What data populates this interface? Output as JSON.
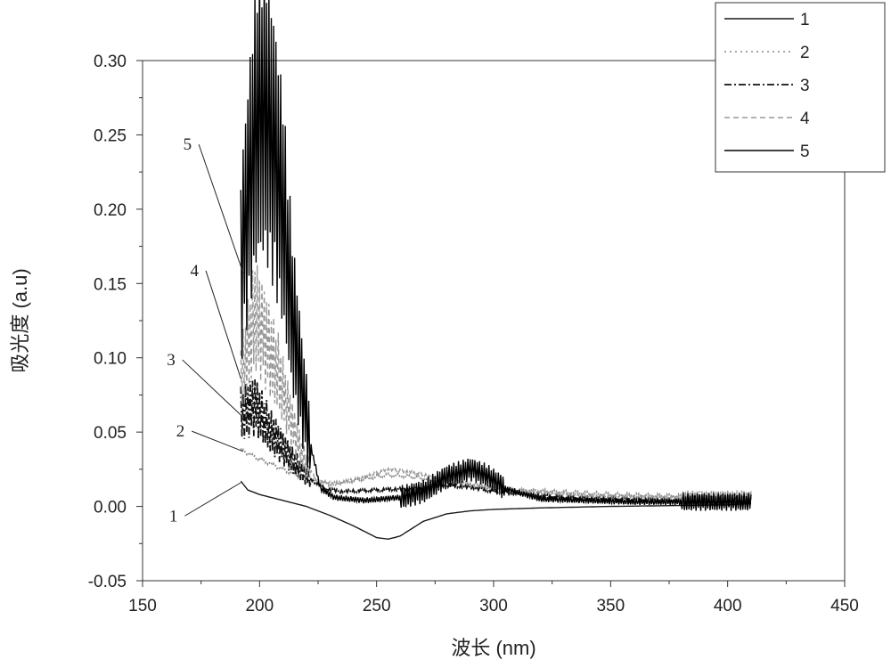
{
  "chart_data": {
    "type": "line",
    "title": "",
    "xlabel": "波长 (nm)",
    "ylabel": "吸光度 (a.u)",
    "xlim": [
      150,
      450
    ],
    "ylim": [
      -0.05,
      0.3
    ],
    "x_ticks": [
      150,
      200,
      250,
      300,
      350,
      400,
      450
    ],
    "x_tick_labels": [
      "150",
      "200",
      "250",
      "300",
      "350",
      "400",
      "450"
    ],
    "y_ticks": [
      -0.05,
      0.0,
      0.05,
      0.1,
      0.15,
      0.2,
      0.25,
      0.3
    ],
    "y_tick_labels": [
      "-0.05",
      "0.00",
      "0.05",
      "0.10",
      "0.15",
      "0.20",
      "0.25",
      "0.30"
    ],
    "grid": false,
    "legend": {
      "position": "top-right",
      "entries": [
        "1",
        "2",
        "3",
        "4",
        "5"
      ]
    },
    "series": [
      {
        "name": "1",
        "style": "solid",
        "color": "#1a1a1a",
        "noise_pattern": "none",
        "points": [
          [
            192,
            0.017
          ],
          [
            195,
            0.011
          ],
          [
            200,
            0.008
          ],
          [
            210,
            0.004
          ],
          [
            220,
            0.0
          ],
          [
            230,
            -0.006
          ],
          [
            240,
            -0.013
          ],
          [
            250,
            -0.021
          ],
          [
            255,
            -0.022
          ],
          [
            260,
            -0.02
          ],
          [
            270,
            -0.01
          ],
          [
            280,
            -0.005
          ],
          [
            290,
            -0.003
          ],
          [
            300,
            -0.002
          ],
          [
            320,
            -0.001
          ],
          [
            350,
            0.0
          ],
          [
            400,
            0.001
          ],
          [
            410,
            0.002
          ]
        ]
      },
      {
        "name": "2",
        "style": "dotted",
        "color": "#888888",
        "noise_pattern": "mild",
        "points": [
          [
            192,
            0.038
          ],
          [
            200,
            0.032
          ],
          [
            210,
            0.025
          ],
          [
            220,
            0.018
          ],
          [
            230,
            0.015
          ],
          [
            240,
            0.017
          ],
          [
            250,
            0.02
          ],
          [
            255,
            0.021
          ],
          [
            265,
            0.02
          ],
          [
            280,
            0.016
          ],
          [
            300,
            0.012
          ],
          [
            350,
            0.008
          ],
          [
            400,
            0.006
          ],
          [
            410,
            0.006
          ]
        ]
      },
      {
        "name": "3",
        "style": "dashdot",
        "color": "#111111",
        "noise_pattern": "oscillating",
        "points": [
          [
            192,
            0.062
          ],
          [
            198,
            0.068
          ],
          [
            205,
            0.05
          ],
          [
            212,
            0.035
          ],
          [
            220,
            0.02
          ],
          [
            228,
            0.012
          ],
          [
            235,
            0.01
          ],
          [
            250,
            0.011
          ],
          [
            265,
            0.012
          ],
          [
            280,
            0.014
          ],
          [
            290,
            0.013
          ],
          [
            300,
            0.01
          ],
          [
            330,
            0.006
          ],
          [
            380,
            0.004
          ],
          [
            410,
            0.004
          ]
        ]
      },
      {
        "name": "4",
        "style": "dashed",
        "color": "#999999",
        "noise_pattern": "oscillating",
        "points": [
          [
            192,
            0.085
          ],
          [
            198,
            0.13
          ],
          [
            203,
            0.11
          ],
          [
            208,
            0.09
          ],
          [
            213,
            0.06
          ],
          [
            218,
            0.035
          ],
          [
            224,
            0.018
          ],
          [
            232,
            0.015
          ],
          [
            245,
            0.02
          ],
          [
            255,
            0.025
          ],
          [
            265,
            0.023
          ],
          [
            280,
            0.018
          ],
          [
            300,
            0.012
          ],
          [
            340,
            0.007
          ],
          [
            380,
            0.006
          ],
          [
            410,
            0.007
          ]
        ]
      },
      {
        "name": "5",
        "style": "solid",
        "color": "#000000",
        "noise_pattern": "strong",
        "points": [
          [
            192,
            0.16
          ],
          [
            196,
            0.22
          ],
          [
            199,
            0.265
          ],
          [
            202,
            0.27
          ],
          [
            206,
            0.24
          ],
          [
            210,
            0.2
          ],
          [
            214,
            0.13
          ],
          [
            218,
            0.08
          ],
          [
            222,
            0.04
          ],
          [
            226,
            0.012
          ],
          [
            232,
            0.006
          ],
          [
            245,
            0.004
          ],
          [
            260,
            0.006
          ],
          [
            270,
            0.01
          ],
          [
            280,
            0.02
          ],
          [
            290,
            0.025
          ],
          [
            297,
            0.021
          ],
          [
            305,
            0.012
          ],
          [
            320,
            0.005
          ],
          [
            360,
            0.003
          ],
          [
            410,
            0.003
          ]
        ]
      }
    ],
    "annotations": [
      {
        "label": "1",
        "text_at": [
          165,
          -0.01
        ],
        "arrow_to": [
          192,
          0.016
        ]
      },
      {
        "label": "2",
        "text_at": [
          168,
          0.047
        ],
        "arrow_to": [
          193,
          0.037
        ]
      },
      {
        "label": "3",
        "text_at": [
          164,
          0.095
        ],
        "arrow_to": [
          193,
          0.06
        ]
      },
      {
        "label": "4",
        "text_at": [
          174,
          0.155
        ],
        "arrow_to": [
          192,
          0.086
        ]
      },
      {
        "label": "5",
        "text_at": [
          171,
          0.24
        ],
        "arrow_to": [
          193,
          0.157
        ]
      }
    ]
  }
}
